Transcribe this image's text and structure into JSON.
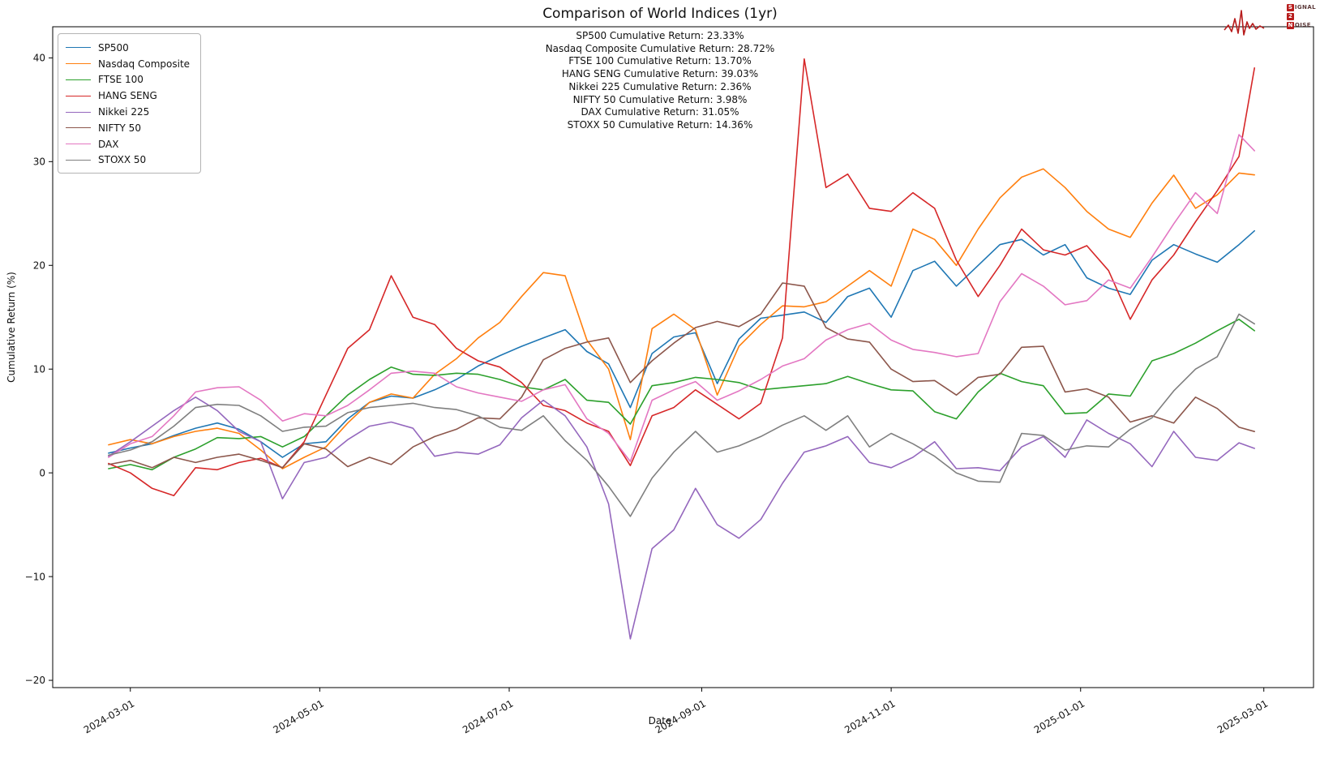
{
  "chart_data": {
    "type": "line",
    "title": "Comparison of World Indices (1yr)",
    "xlabel": "Date",
    "ylabel": "Cumulative Return (%)",
    "grid": false,
    "legend_position": "upper left",
    "ylim": [
      -20.7,
      43.0
    ],
    "y_ticks": [
      -20,
      -10,
      0,
      10,
      20,
      30,
      40
    ],
    "x_tick_labels": [
      "2024-03-01",
      "2024-05-01",
      "2024-07-01",
      "2024-09-01",
      "2024-11-01",
      "2025-01-01",
      "2025-03-01"
    ],
    "x_tick_days": [
      7,
      68,
      129,
      191,
      252,
      313,
      372
    ],
    "x_days": [
      0,
      7,
      14,
      21,
      28,
      35,
      42,
      49,
      56,
      63,
      70,
      77,
      84,
      91,
      98,
      105,
      112,
      119,
      126,
      133,
      140,
      147,
      154,
      161,
      168,
      175,
      182,
      189,
      196,
      203,
      210,
      217,
      224,
      231,
      238,
      245,
      252,
      259,
      266,
      273,
      280,
      287,
      294,
      301,
      308,
      315,
      322,
      329,
      336,
      343,
      350,
      357,
      364,
      369
    ],
    "annotations": [
      "SP500 Cumulative Return: 23.33%",
      "Nasdaq Composite Cumulative Return: 28.72%",
      "FTSE 100 Cumulative Return: 13.70%",
      "HANG SENG Cumulative Return: 39.03%",
      "Nikkei 225 Cumulative Return: 2.36%",
      "NIFTY 50 Cumulative Return: 3.98%",
      "DAX Cumulative Return: 31.05%",
      "STOXX 50 Cumulative Return: 14.36%"
    ],
    "series": [
      {
        "name": "SP500",
        "color": "#1f77b4",
        "final_return_pct": 23.33,
        "values": [
          1.9,
          2.4,
          2.8,
          3.6,
          4.3,
          4.8,
          4.2,
          3.0,
          1.5,
          2.8,
          3.0,
          5.2,
          6.8,
          7.4,
          7.2,
          8.0,
          9.0,
          10.3,
          11.3,
          12.2,
          13.0,
          13.8,
          11.7,
          10.5,
          6.3,
          11.5,
          13.1,
          13.5,
          8.6,
          12.9,
          14.9,
          15.2,
          15.5,
          14.5,
          17.0,
          17.8,
          15.0,
          19.5,
          20.4,
          18.0,
          20.0,
          22.0,
          22.5,
          21.0,
          22.0,
          18.8,
          17.8,
          17.2,
          20.5,
          22.0,
          21.1,
          20.3,
          22.0,
          23.33
        ]
      },
      {
        "name": "Nasdaq Composite",
        "color": "#ff7f0e",
        "final_return_pct": 28.72,
        "values": [
          2.7,
          3.2,
          2.8,
          3.5,
          4.0,
          4.3,
          3.8,
          2.2,
          0.4,
          1.5,
          2.5,
          4.8,
          6.8,
          7.6,
          7.2,
          9.5,
          11.0,
          13.0,
          14.5,
          17.0,
          19.3,
          19.0,
          12.8,
          10.0,
          3.2,
          13.9,
          15.3,
          13.8,
          7.5,
          12.2,
          14.3,
          16.1,
          16.0,
          16.5,
          18.0,
          19.5,
          18.0,
          23.5,
          22.5,
          20.0,
          23.5,
          26.5,
          28.5,
          29.3,
          27.5,
          25.2,
          23.5,
          22.7,
          26.0,
          28.7,
          25.5,
          26.8,
          28.9,
          28.72
        ]
      },
      {
        "name": "FTSE 100",
        "color": "#2ca02c",
        "final_return_pct": 13.7,
        "values": [
          0.4,
          0.8,
          0.3,
          1.5,
          2.3,
          3.4,
          3.3,
          3.5,
          2.5,
          3.5,
          5.5,
          7.5,
          9.0,
          10.2,
          9.5,
          9.4,
          9.6,
          9.5,
          9.0,
          8.3,
          8.0,
          9.0,
          7.0,
          6.8,
          4.7,
          8.4,
          8.7,
          9.2,
          9.0,
          8.7,
          8.0,
          8.2,
          8.4,
          8.6,
          9.3,
          8.6,
          8.0,
          7.9,
          5.9,
          5.2,
          7.8,
          9.6,
          8.8,
          8.4,
          5.7,
          5.8,
          7.6,
          7.4,
          10.8,
          11.5,
          12.5,
          13.7,
          14.8,
          13.7
        ]
      },
      {
        "name": "HANG SENG",
        "color": "#d62728",
        "final_return_pct": 39.03,
        "values": [
          0.9,
          0.0,
          -1.5,
          -2.2,
          0.5,
          0.3,
          1.0,
          1.4,
          0.5,
          3.0,
          7.5,
          12.0,
          13.8,
          19.0,
          15.0,
          14.3,
          12.0,
          10.8,
          10.2,
          8.7,
          6.5,
          6.0,
          4.8,
          4.0,
          0.7,
          5.5,
          6.3,
          8.0,
          6.6,
          5.2,
          6.7,
          13.0,
          39.9,
          27.5,
          28.8,
          25.5,
          25.2,
          27.0,
          25.5,
          20.5,
          17.0,
          20.0,
          23.5,
          21.5,
          21.0,
          21.9,
          19.5,
          14.8,
          18.6,
          21.0,
          24.2,
          27.2,
          30.5,
          39.03
        ]
      },
      {
        "name": "Nikkei 225",
        "color": "#9467bd",
        "final_return_pct": 2.36,
        "values": [
          1.6,
          3.0,
          4.5,
          6.0,
          7.3,
          6.0,
          4.0,
          3.0,
          -2.5,
          1.0,
          1.5,
          3.2,
          4.5,
          4.9,
          4.3,
          1.6,
          2.0,
          1.8,
          2.7,
          5.3,
          7.0,
          5.5,
          2.5,
          -3.0,
          -16.0,
          -7.3,
          -5.5,
          -1.5,
          -5.0,
          -6.3,
          -4.5,
          -1.0,
          2.0,
          2.6,
          3.5,
          1.0,
          0.5,
          1.5,
          3.0,
          0.4,
          0.5,
          0.2,
          2.5,
          3.5,
          1.5,
          5.1,
          3.8,
          2.8,
          0.6,
          4.0,
          1.5,
          1.2,
          2.9,
          2.36
        ]
      },
      {
        "name": "NIFTY 50",
        "color": "#8c564b",
        "final_return_pct": 3.98,
        "values": [
          0.8,
          1.2,
          0.5,
          1.5,
          1.0,
          1.5,
          1.8,
          1.2,
          0.5,
          2.8,
          2.3,
          0.6,
          1.5,
          0.8,
          2.5,
          3.5,
          4.2,
          5.3,
          5.2,
          7.3,
          10.9,
          12.0,
          12.6,
          13.0,
          8.7,
          10.8,
          12.5,
          14.0,
          14.6,
          14.1,
          15.3,
          18.3,
          18.0,
          14.0,
          12.9,
          12.6,
          10.0,
          8.8,
          8.9,
          7.5,
          9.2,
          9.5,
          12.1,
          12.2,
          7.8,
          8.1,
          7.3,
          4.9,
          5.5,
          4.8,
          7.3,
          6.2,
          4.4,
          3.98
        ]
      },
      {
        "name": "DAX",
        "color": "#e377c2",
        "final_return_pct": 31.05,
        "values": [
          1.5,
          2.8,
          3.5,
          5.5,
          7.8,
          8.2,
          8.3,
          7.0,
          5.0,
          5.7,
          5.5,
          6.5,
          8.0,
          9.6,
          9.8,
          9.6,
          8.3,
          7.7,
          7.3,
          6.9,
          8.0,
          8.5,
          5.2,
          3.8,
          1.1,
          7.0,
          8.0,
          8.8,
          7.0,
          7.9,
          9.0,
          10.3,
          11.0,
          12.8,
          13.8,
          14.4,
          12.8,
          11.9,
          11.6,
          11.2,
          11.5,
          16.5,
          19.2,
          18.0,
          16.2,
          16.6,
          18.6,
          17.8,
          20.8,
          24.0,
          27.0,
          25.0,
          32.6,
          31.05
        ]
      },
      {
        "name": "STOXX 50",
        "color": "#7f7f7f",
        "final_return_pct": 14.36,
        "values": [
          1.7,
          2.2,
          3.0,
          4.5,
          6.3,
          6.6,
          6.5,
          5.5,
          4.0,
          4.4,
          4.5,
          5.8,
          6.3,
          6.5,
          6.7,
          6.3,
          6.1,
          5.5,
          4.4,
          4.1,
          5.5,
          3.1,
          1.2,
          -1.3,
          -4.2,
          -0.5,
          2.0,
          4.0,
          2.0,
          2.6,
          3.5,
          4.6,
          5.5,
          4.1,
          5.5,
          2.5,
          3.8,
          2.8,
          1.6,
          0.0,
          -0.8,
          -0.9,
          3.8,
          3.6,
          2.2,
          2.6,
          2.5,
          4.2,
          5.3,
          7.9,
          10.0,
          11.2,
          15.3,
          14.36
        ]
      }
    ]
  },
  "logo": {
    "rows": [
      {
        "boxed": "S",
        "rest": "IGNAL"
      },
      {
        "boxed": "2",
        "rest": ""
      },
      {
        "boxed": "N",
        "rest": "OISE"
      }
    ]
  }
}
